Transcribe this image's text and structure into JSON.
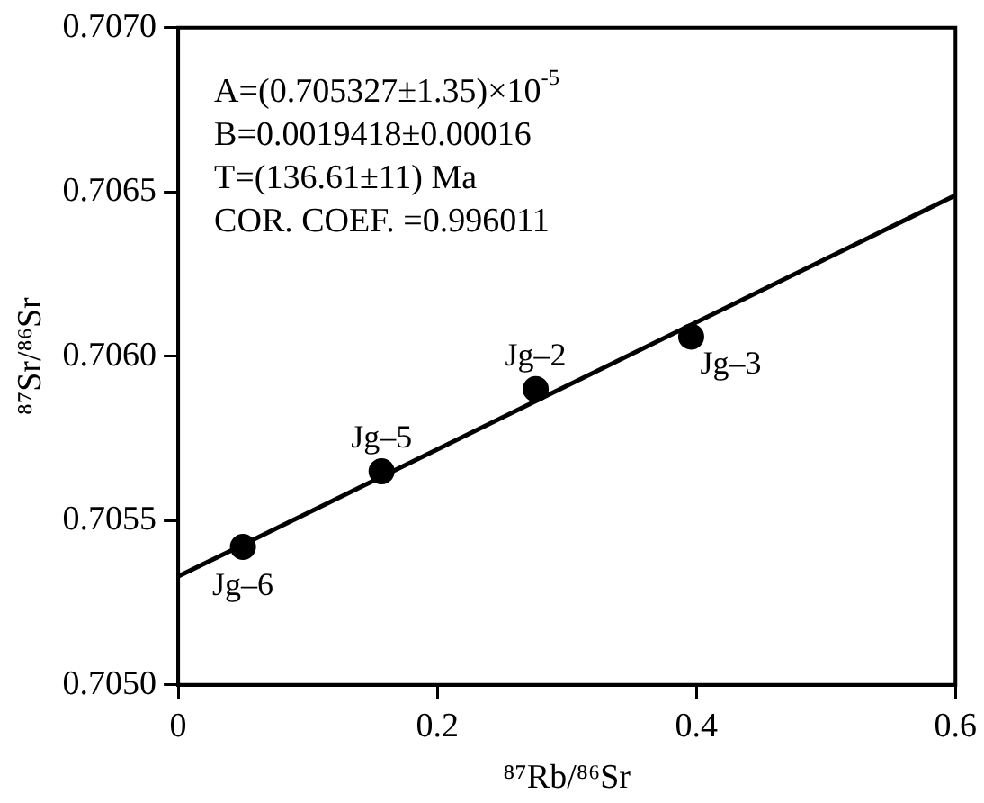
{
  "chart_data": {
    "type": "scatter",
    "xlabel": "⁸⁷Rb/⁸⁶Sr",
    "ylabel": "⁸⁷Sr/⁸⁶Sr",
    "series": [
      {
        "color": "#000000",
        "marker": "circle",
        "x": [
          0.05,
          0.157,
          0.276,
          0.396
        ],
        "values": [
          0.70542,
          0.70565,
          0.7059,
          0.70606
        ]
      },
      {
        "type": "line",
        "color": "#000000",
        "marker": "none",
        "line_style": "solid",
        "x": [
          0,
          0.6
        ],
        "values": [
          0.70533,
          0.70649
        ]
      }
    ],
    "xlim": [
      0,
      0.6
    ],
    "xticks": [
      0,
      0.2,
      0.4,
      0.6
    ],
    "ylim": [
      0.705,
      0.707
    ],
    "yticks": [
      {
        "value": 0.705,
        "label": "0.7050"
      },
      {
        "value": 0.7055,
        "label": "0.7055"
      },
      {
        "value": 0.706,
        "label": "0.7060"
      },
      {
        "value": 0.7065,
        "label": "0.7065"
      },
      {
        "value": 0.707,
        "label": "0.7070"
      }
    ],
    "grid": false,
    "legend": false,
    "annotations": [
      "A=(0.705327±1.35)×10$^{-5}$",
      "B=0.0019418±0.00016",
      "T=(136.61±11) Ma",
      "COR. COEF. =0.996011",
      {
        "text": "Jg–6",
        "x": 0.05,
        "y": 0.70542
      },
      {
        "text": "Jg–5",
        "x": 0.157,
        "y": 0.70565
      },
      {
        "text": "Jg–2",
        "x": 0.276,
        "y": 0.7059
      },
      {
        "text": "Jg–3",
        "x": 0.396,
        "y": 0.70606
      }
    ]
  }
}
